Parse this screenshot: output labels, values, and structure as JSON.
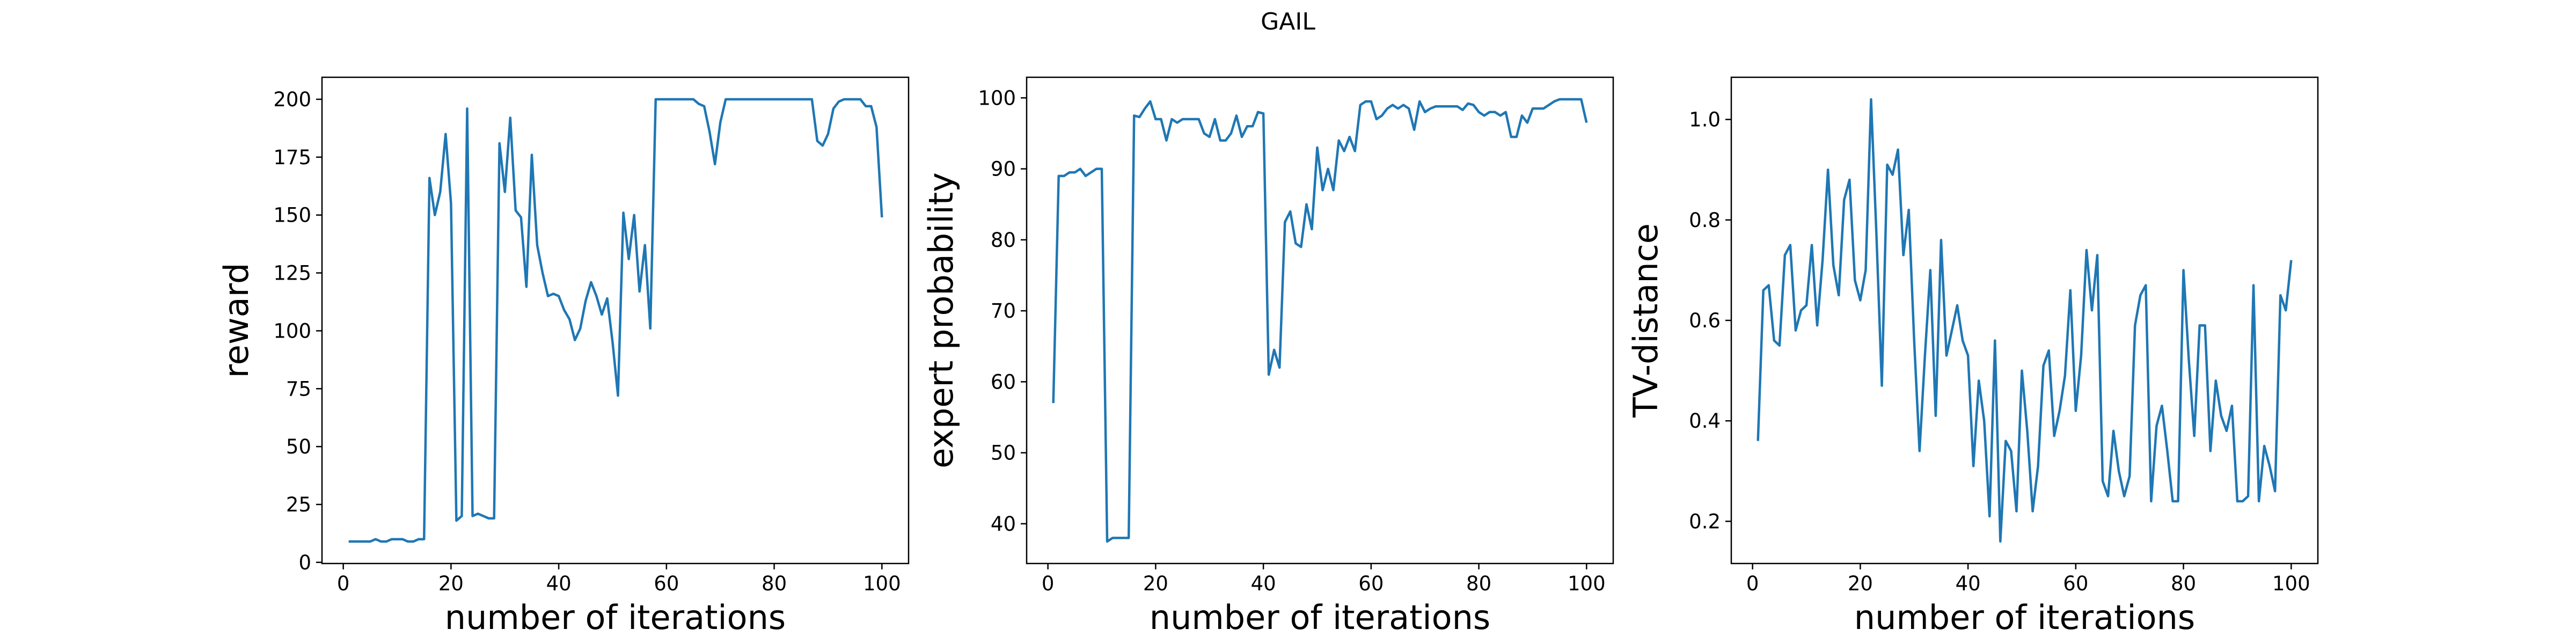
{
  "title": "GAIL",
  "chart_data": [
    {
      "type": "line",
      "xlabel": "number of iterations",
      "ylabel": "reward",
      "color": "#1f77b4",
      "x": [
        1,
        2,
        3,
        4,
        5,
        6,
        7,
        8,
        9,
        10,
        11,
        12,
        13,
        14,
        15,
        16,
        17,
        18,
        19,
        20,
        21,
        22,
        23,
        24,
        25,
        26,
        27,
        28,
        29,
        30,
        31,
        32,
        33,
        34,
        35,
        36,
        37,
        38,
        39,
        40,
        41,
        42,
        43,
        44,
        45,
        46,
        47,
        48,
        49,
        50,
        51,
        52,
        53,
        54,
        55,
        56,
        57,
        58,
        59,
        60,
        61,
        62,
        63,
        64,
        65,
        66,
        67,
        68,
        69,
        70,
        71,
        72,
        73,
        74,
        75,
        76,
        77,
        78,
        79,
        80,
        81,
        82,
        83,
        84,
        85,
        86,
        87,
        88,
        89,
        90,
        91,
        92,
        93,
        94,
        95,
        96,
        97,
        98,
        99,
        100
      ],
      "values": [
        9,
        9,
        9,
        9,
        9,
        10,
        9,
        9,
        10,
        10,
        10,
        9,
        9,
        10,
        10,
        166,
        150,
        160,
        185,
        155,
        18,
        20,
        196,
        20,
        21,
        20,
        19,
        19,
        181,
        160,
        192,
        152,
        149,
        119,
        176,
        137,
        125,
        115,
        116,
        115,
        109,
        105,
        96,
        101,
        113,
        121,
        115,
        107,
        114,
        95,
        72,
        151,
        131,
        150,
        117,
        137,
        101,
        200,
        200,
        200,
        200,
        200,
        200,
        200,
        200,
        198,
        197,
        186,
        172,
        190,
        200,
        200,
        200,
        200,
        200,
        200,
        200,
        200,
        200,
        200,
        200,
        200,
        200,
        200,
        200,
        200,
        200,
        182,
        180,
        185,
        196,
        199,
        200,
        200,
        200,
        200,
        197,
        197,
        188,
        149
      ],
      "xlim": [
        -3.95,
        104.95
      ],
      "ylim": [
        -0.5,
        209.5
      ],
      "xticks": [
        0,
        20,
        40,
        60,
        80,
        100
      ],
      "yticks": [
        0,
        25,
        50,
        75,
        100,
        125,
        150,
        175,
        200
      ]
    },
    {
      "type": "line",
      "xlabel": "number of iterations",
      "ylabel": "expert probability",
      "color": "#1f77b4",
      "x": [
        1,
        2,
        3,
        4,
        5,
        6,
        7,
        8,
        9,
        10,
        11,
        12,
        13,
        14,
        15,
        16,
        17,
        18,
        19,
        20,
        21,
        22,
        23,
        24,
        25,
        26,
        27,
        28,
        29,
        30,
        31,
        32,
        33,
        34,
        35,
        36,
        37,
        38,
        39,
        40,
        41,
        42,
        43,
        44,
        45,
        46,
        47,
        48,
        49,
        50,
        51,
        52,
        53,
        54,
        55,
        56,
        57,
        58,
        59,
        60,
        61,
        62,
        63,
        64,
        65,
        66,
        67,
        68,
        69,
        70,
        71,
        72,
        73,
        74,
        75,
        76,
        77,
        78,
        79,
        80,
        81,
        82,
        83,
        84,
        85,
        86,
        87,
        88,
        89,
        90,
        91,
        92,
        93,
        94,
        95,
        96,
        97,
        98,
        99,
        100
      ],
      "values": [
        57,
        89,
        89,
        89.5,
        89.5,
        90,
        89,
        89.5,
        90,
        90,
        37.5,
        38,
        38,
        38,
        38,
        97.5,
        97.3,
        98.5,
        99.5,
        97,
        97,
        94,
        97,
        96.5,
        97,
        97,
        97,
        97,
        95,
        94.5,
        97,
        94,
        94,
        95,
        97.5,
        94.5,
        96,
        96,
        98,
        97.8,
        61,
        64.5,
        62,
        82.5,
        84,
        79.5,
        79,
        85,
        81.5,
        93,
        87,
        90,
        87,
        94,
        92.5,
        94.5,
        92.5,
        99,
        99.5,
        99.5,
        97,
        97.5,
        98.5,
        99,
        98.5,
        99,
        98.5,
        95.5,
        99.5,
        98,
        98.5,
        98.8,
        98.8,
        98.8,
        98.8,
        98.8,
        98.3,
        99.2,
        99,
        98,
        97.5,
        98,
        98,
        97.5,
        98,
        94.5,
        94.5,
        97.5,
        96.5,
        98.5,
        98.5,
        98.5,
        99,
        99.5,
        99.8,
        99.8,
        99.8,
        99.8,
        99.8,
        96.5
      ],
      "xlim": [
        -3.95,
        104.95
      ],
      "ylim": [
        34.4,
        102.9
      ],
      "xticks": [
        0,
        20,
        40,
        60,
        80,
        100
      ],
      "yticks": [
        40,
        50,
        60,
        70,
        80,
        90,
        100
      ]
    },
    {
      "type": "line",
      "xlabel": "number of iterations",
      "ylabel": "TV-distance",
      "color": "#1f77b4",
      "x": [
        1,
        2,
        3,
        4,
        5,
        6,
        7,
        8,
        9,
        10,
        11,
        12,
        13,
        14,
        15,
        16,
        17,
        18,
        19,
        20,
        21,
        22,
        23,
        24,
        25,
        26,
        27,
        28,
        29,
        30,
        31,
        32,
        33,
        34,
        35,
        36,
        37,
        38,
        39,
        40,
        41,
        42,
        43,
        44,
        45,
        46,
        47,
        48,
        49,
        50,
        51,
        52,
        53,
        54,
        55,
        56,
        57,
        58,
        59,
        60,
        61,
        62,
        63,
        64,
        65,
        66,
        67,
        68,
        69,
        70,
        71,
        72,
        73,
        74,
        75,
        76,
        77,
        78,
        79,
        80,
        81,
        82,
        83,
        84,
        85,
        86,
        87,
        88,
        89,
        90,
        91,
        92,
        93,
        94,
        95,
        96,
        97,
        98,
        99,
        100
      ],
      "values": [
        0.36,
        0.66,
        0.67,
        0.56,
        0.55,
        0.73,
        0.75,
        0.58,
        0.62,
        0.63,
        0.75,
        0.59,
        0.72,
        0.9,
        0.71,
        0.65,
        0.84,
        0.88,
        0.68,
        0.64,
        0.7,
        1.04,
        0.77,
        0.47,
        0.91,
        0.89,
        0.94,
        0.73,
        0.82,
        0.56,
        0.34,
        0.53,
        0.7,
        0.41,
        0.76,
        0.53,
        0.58,
        0.63,
        0.56,
        0.53,
        0.31,
        0.48,
        0.4,
        0.21,
        0.56,
        0.16,
        0.36,
        0.34,
        0.22,
        0.5,
        0.38,
        0.22,
        0.31,
        0.51,
        0.54,
        0.37,
        0.42,
        0.49,
        0.66,
        0.42,
        0.53,
        0.74,
        0.62,
        0.73,
        0.28,
        0.25,
        0.38,
        0.3,
        0.25,
        0.29,
        0.59,
        0.65,
        0.67,
        0.24,
        0.39,
        0.43,
        0.34,
        0.24,
        0.24,
        0.7,
        0.52,
        0.37,
        0.59,
        0.59,
        0.34,
        0.48,
        0.41,
        0.38,
        0.43,
        0.24,
        0.24,
        0.25,
        0.67,
        0.24,
        0.35,
        0.31,
        0.26,
        0.65,
        0.62,
        0.72
      ],
      "xlim": [
        -3.95,
        104.95
      ],
      "ylim": [
        0.116,
        1.084
      ],
      "xticks": [
        0,
        20,
        40,
        60,
        80,
        100
      ],
      "yticks": [
        0.2,
        0.4,
        0.6,
        0.8,
        {
          "value": 1,
          "label": "1.0"
        }
      ]
    }
  ]
}
